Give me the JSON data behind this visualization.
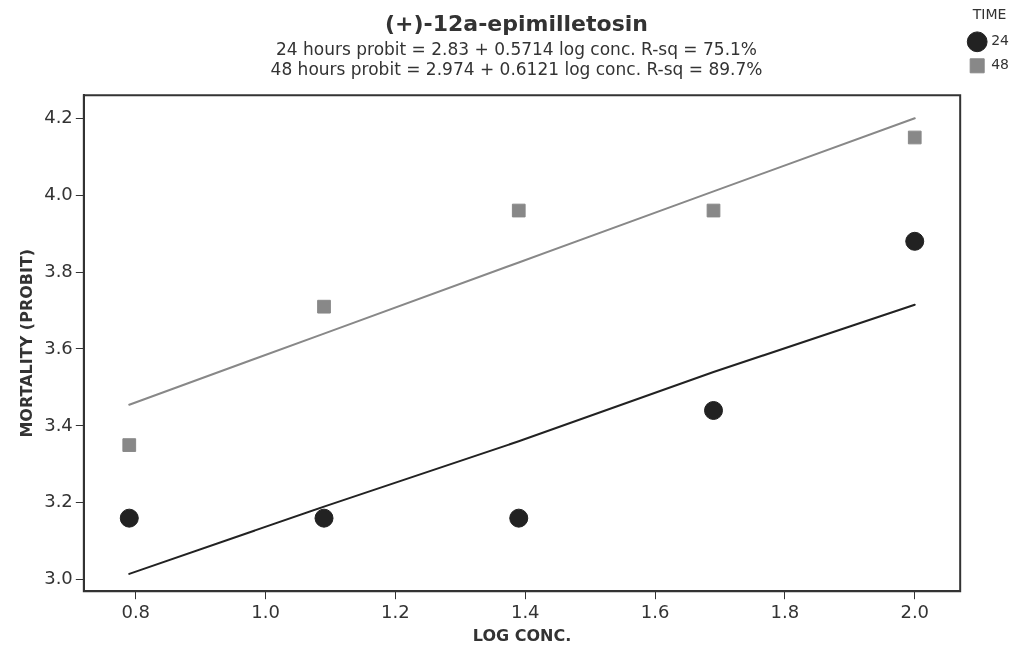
{
  "chart_data": {
    "type": "scatter",
    "title": "(+)-12a-epimilletosin",
    "subtitle": "24 hours probit = 2.83 + 0.5714 log conc. R-sq = 75.1%",
    "annotations": [
      "48 hours probit = 2.974 + 0.6121 log conc. R-sq = 89.7%"
    ],
    "xlabel": "LOG CONC.",
    "ylabel": "MORTALITY (PROBIT)",
    "legend_title": "TIME",
    "x": [
      0.79,
      1.09,
      1.39,
      1.69,
      2.0
    ],
    "series": [
      {
        "name": "24",
        "color": "#222222",
        "marker": "circle",
        "values": [
          3.16,
          3.16,
          3.16,
          3.44,
          3.88
        ]
      },
      {
        "name": "48",
        "color": "#888888",
        "marker": "square",
        "values": [
          3.35,
          3.71,
          3.96,
          3.96,
          4.15
        ]
      },
      {
        "type": "line",
        "color": "#222222",
        "marker": "none",
        "values": [
          3.015,
          3.19,
          3.36,
          3.54,
          3.715
        ]
      },
      {
        "type": "line",
        "color": "#888888",
        "marker": "none",
        "values": [
          3.455,
          3.64,
          3.825,
          4.01,
          4.2
        ]
      }
    ],
    "xlim": [
      0.72,
      2.07
    ],
    "xticks": [
      0.8,
      {
        "value": 1,
        "label": "1.0"
      },
      1.2,
      1.4,
      1.6,
      1.8,
      {
        "value": 2,
        "label": "2.0"
      }
    ],
    "ylim": [
      2.97,
      4.26
    ],
    "yticks": [
      {
        "value": 3,
        "label": "3.0"
      },
      3.2,
      3.4,
      3.6,
      3.8,
      {
        "value": 4,
        "label": "4.0"
      },
      4.2
    ],
    "grid": false,
    "legend": "top right"
  }
}
